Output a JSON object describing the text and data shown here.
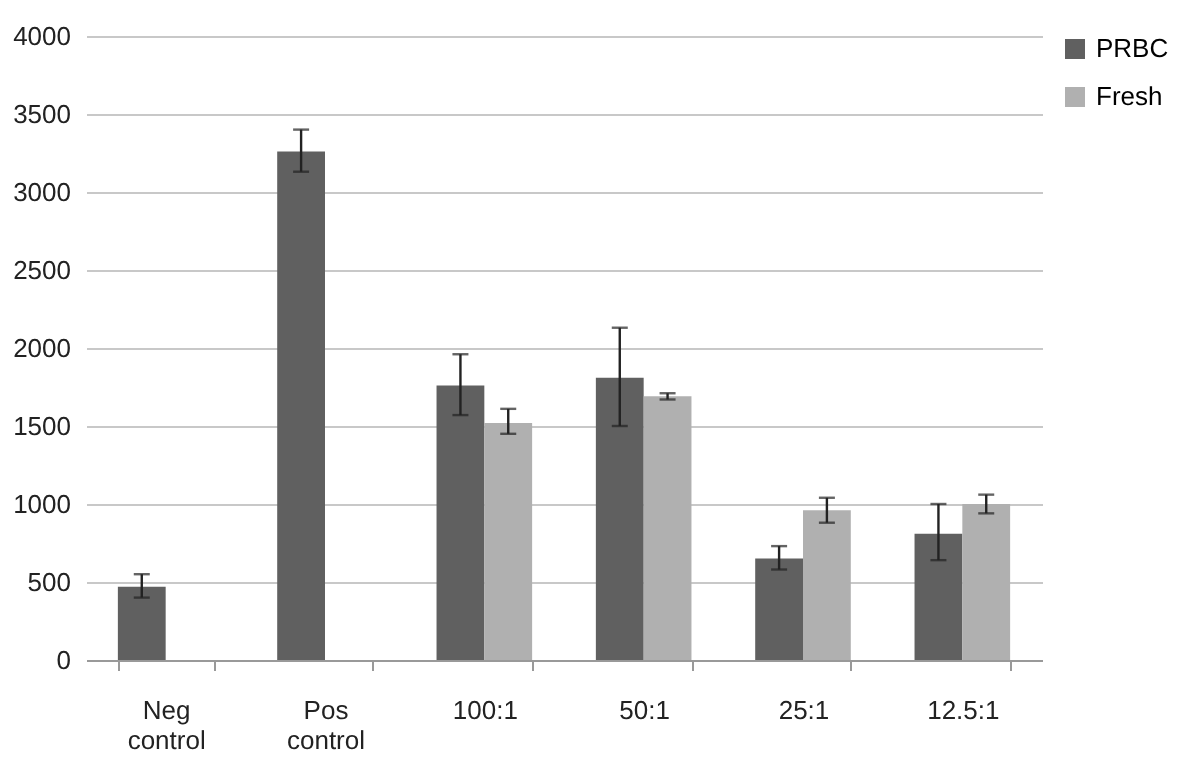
{
  "chart_data": {
    "type": "bar",
    "categories": [
      "Neg control",
      "Pos control",
      "100:1",
      "50:1",
      "25:1",
      "12.5:1"
    ],
    "series": [
      {
        "name": "PRBC",
        "color": "#606060",
        "values": [
          470,
          3260,
          1760,
          1810,
          650,
          810
        ],
        "errors": [
          [
            400,
            550
          ],
          [
            3130,
            3400
          ],
          [
            1570,
            1960
          ],
          [
            1500,
            2130
          ],
          [
            580,
            730
          ],
          [
            640,
            1000
          ]
        ]
      },
      {
        "name": "Fresh",
        "color": "#b0b0b0",
        "values": [
          null,
          null,
          1520,
          1690,
          960,
          1000
        ],
        "errors": [
          null,
          null,
          [
            1450,
            1610
          ],
          [
            1670,
            1710
          ],
          [
            880,
            1040
          ],
          [
            940,
            1060
          ]
        ]
      }
    ],
    "ylim": [
      0,
      4000
    ],
    "yticks": [
      0,
      500,
      1000,
      1500,
      2000,
      2500,
      3000,
      3500,
      4000
    ],
    "grid": "y",
    "legend": "right"
  }
}
